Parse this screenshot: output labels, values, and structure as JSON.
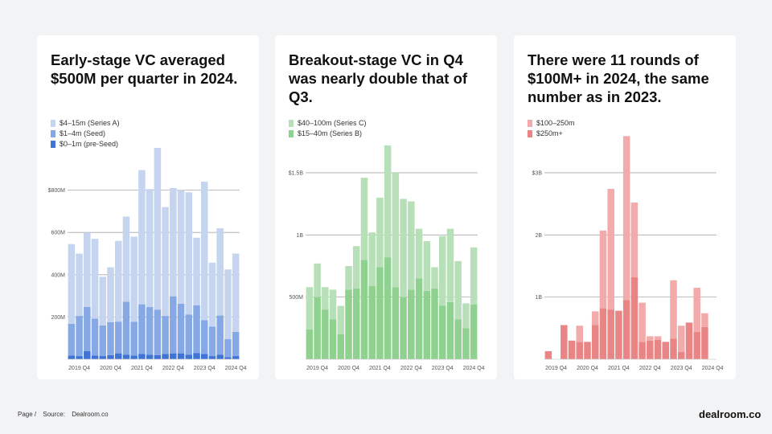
{
  "footer": {
    "page": "Page /",
    "source_label": "Source:",
    "source": "Dealroom.co",
    "brand": "dealroom.co"
  },
  "colors": {
    "blue_light": "#c5d4ef",
    "blue_mid": "#86a8e4",
    "blue_dark": "#3f74d6",
    "green_light": "#b8e0b8",
    "green_mid": "#8fd18f",
    "red_light": "#f2aaaa",
    "red_mid": "#ea8585",
    "grid": "#a8a8a8"
  },
  "chart_data": [
    {
      "type": "bar",
      "stacked": true,
      "title": "Early-stage VC averaged $500M per quarter in 2024.",
      "ylim": [
        0,
        1000
      ],
      "yticks": [
        200,
        400,
        600,
        800
      ],
      "ytick_labels": [
        "200M",
        "400M",
        "600M",
        "$800M"
      ],
      "x_tick_labels": [
        "2019 Q4",
        "2020 Q4",
        "2021 Q4",
        "2022 Q4",
        "2023 Q4",
        "2024 Q4"
      ],
      "x_tick_indices": [
        1,
        5,
        9,
        13,
        17,
        21
      ],
      "legend": [
        "$4–15m (Series A)",
        "$1–4m (Seed)",
        "$0–1m (pre-Seed)"
      ],
      "series": [
        {
          "name": "$0–1m (pre-Seed)",
          "color": "#3f74d6",
          "values": [
            18,
            15,
            38,
            18,
            15,
            20,
            28,
            22,
            18,
            25,
            22,
            20,
            25,
            28,
            28,
            22,
            30,
            25,
            15,
            22,
            10,
            15
          ]
        },
        {
          "name": "$1–4m (Seed)",
          "color": "#86a8e4",
          "values": [
            150,
            190,
            210,
            175,
            145,
            155,
            150,
            250,
            160,
            235,
            225,
            215,
            180,
            270,
            235,
            190,
            225,
            160,
            140,
            185,
            85,
            115
          ]
        },
        {
          "name": "$4–15m (Series A)",
          "color": "#c5d4ef",
          "values": [
            377,
            295,
            352,
            377,
            230,
            260,
            382,
            403,
            402,
            635,
            558,
            765,
            515,
            512,
            537,
            578,
            320,
            655,
            302,
            413,
            330,
            370
          ]
        }
      ]
    },
    {
      "type": "bar",
      "stacked": true,
      "title": "Breakout-stage VC in Q4 was nearly double that of Q3.",
      "ylim": [
        0,
        1700
      ],
      "yticks": [
        500,
        1000,
        1500
      ],
      "ytick_labels": [
        "500M",
        "1B",
        "$1.5B"
      ],
      "x_tick_labels": [
        "2019 Q4",
        "2020 Q4",
        "2021 Q4",
        "2022 Q4",
        "2023 Q4",
        "2024 Q4"
      ],
      "x_tick_indices": [
        1,
        5,
        9,
        13,
        17,
        21
      ],
      "legend": [
        "$40–100m (Series C)",
        "$15–40m (Series B)"
      ],
      "series": [
        {
          "name": "$15–40m (Series B)",
          "color": "#8fd18f",
          "values": [
            240,
            500,
            400,
            320,
            200,
            560,
            570,
            800,
            590,
            740,
            820,
            580,
            500,
            560,
            650,
            550,
            570,
            430,
            460,
            320,
            250,
            440
          ]
        },
        {
          "name": "$40–100m (Series C)",
          "color": "#b8e0b8",
          "values": [
            340,
            270,
            180,
            240,
            230,
            190,
            340,
            660,
            430,
            560,
            900,
            920,
            790,
            710,
            400,
            400,
            170,
            560,
            590,
            470,
            200,
            460
          ]
        }
      ]
    },
    {
      "type": "bar",
      "stacked": true,
      "title": "There were 11 rounds of $100M+ in 2024, the same number as in 2023.",
      "ylim": [
        0,
        3400
      ],
      "yticks": [
        1000,
        2000,
        3000
      ],
      "ytick_labels": [
        "1B",
        "2B",
        "$3B"
      ],
      "x_tick_labels": [
        "2019 Q4",
        "2020 Q4",
        "2021 Q4",
        "2022 Q4",
        "2023 Q4",
        "2024 Q4"
      ],
      "x_tick_indices": [
        1,
        5,
        9,
        13,
        17,
        21
      ],
      "legend": [
        "$100–250m",
        "$250m+"
      ],
      "series": [
        {
          "name": "$250m+",
          "color": "#ea8585",
          "values": [
            130,
            0,
            550,
            300,
            280,
            280,
            550,
            820,
            800,
            780,
            950,
            1320,
            280,
            300,
            310,
            280,
            330,
            120,
            590,
            440,
            520,
            0
          ]
        },
        {
          "name": "$100–250m",
          "color": "#f2aaaa",
          "values": [
            0,
            0,
            0,
            0,
            260,
            0,
            220,
            1250,
            1940,
            0,
            2640,
            1200,
            630,
            70,
            60,
            0,
            940,
            420,
            0,
            710,
            220,
            0
          ]
        }
      ]
    }
  ]
}
